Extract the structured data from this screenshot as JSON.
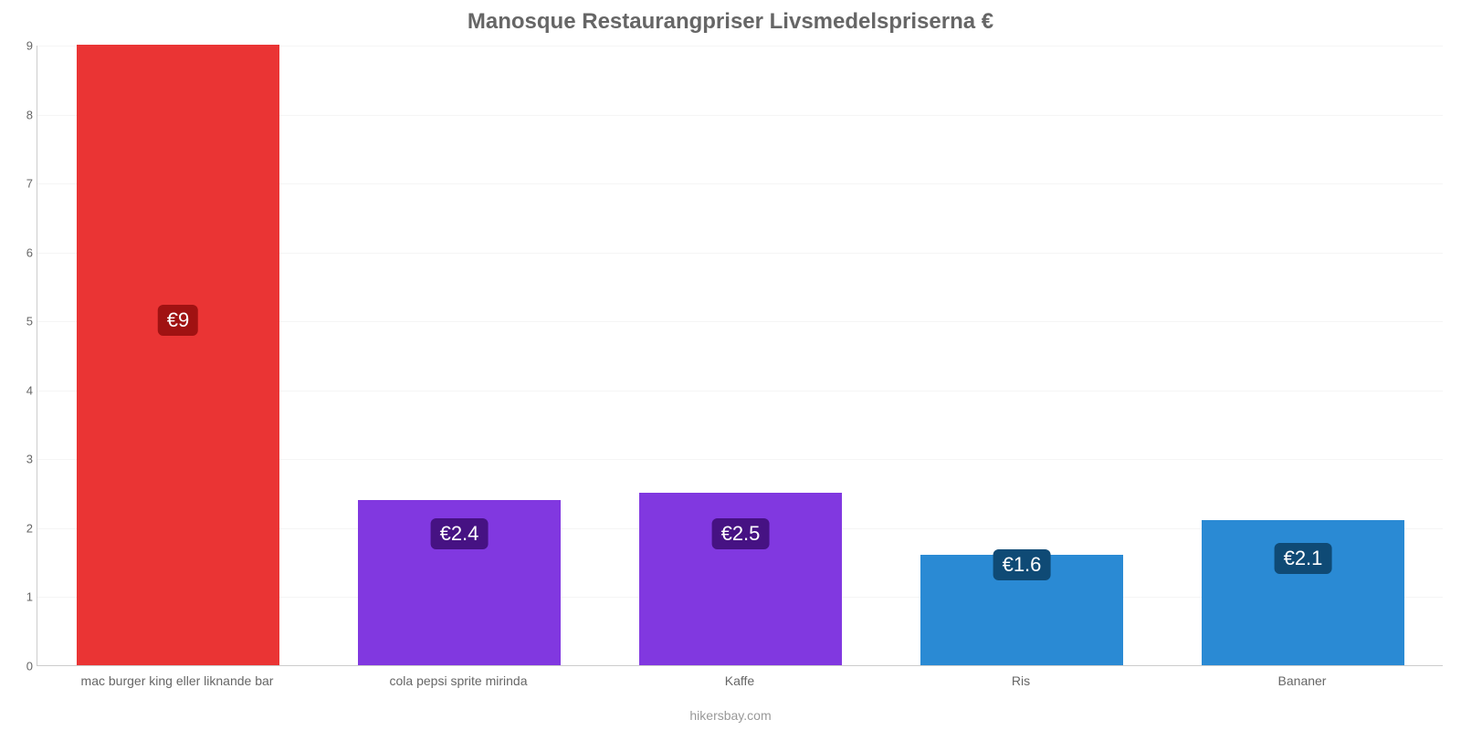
{
  "chart": {
    "type": "bar",
    "title": "Manosque Restaurangpriser Livsmedelspriserna €",
    "title_color": "#666666",
    "title_fontsize": 24,
    "background_color": "#ffffff",
    "grid_color": "#f5f5f5",
    "axis_color": "#cccccc",
    "tick_color": "#666666",
    "tick_fontsize": 13,
    "xlabel_fontsize": 14,
    "ylim": [
      0,
      9
    ],
    "ytick_step": 1,
    "yticks": [
      "0",
      "1",
      "2",
      "3",
      "4",
      "5",
      "6",
      "7",
      "8",
      "9"
    ],
    "credit": "hikersbay.com",
    "credit_color": "#999999",
    "bar_width_ratio": 0.72,
    "value_label_fontsize": 22,
    "categories": [
      "mac burger king eller liknande bar",
      "cola pepsi sprite mirinda",
      "Kaffe",
      "Ris",
      "Bananer"
    ],
    "values": [
      9,
      2.4,
      2.5,
      1.6,
      2.1
    ],
    "value_labels": [
      "€9",
      "€2.4",
      "€2.5",
      "€1.6",
      "€2.1"
    ],
    "bar_colors": [
      "#ea3434",
      "#8138e0",
      "#8138e0",
      "#2a8ad4",
      "#2a8ad4"
    ],
    "label_bg_colors": [
      "#a01212",
      "#461283",
      "#461283",
      "#0f4a75",
      "#0f4a75"
    ],
    "label_center_values": [
      5.0,
      1.9,
      1.9,
      1.45,
      1.55
    ]
  }
}
